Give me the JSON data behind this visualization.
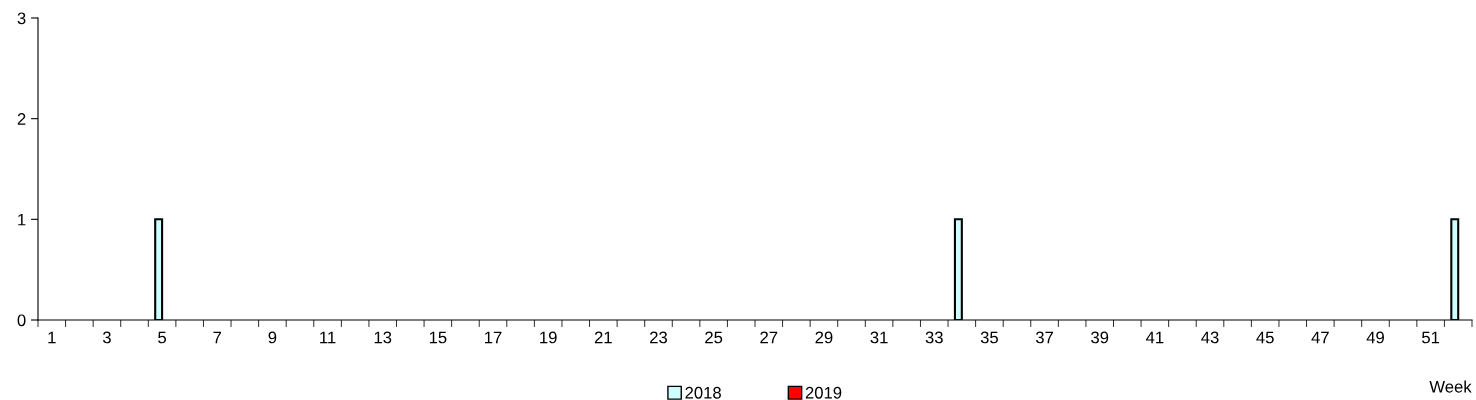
{
  "chart_data": {
    "type": "bar",
    "xlabel": "Week",
    "categories": [
      "1",
      null,
      "3",
      null,
      "5",
      null,
      "7",
      null,
      "9",
      null,
      "11",
      null,
      "13",
      null,
      "15",
      null,
      "17",
      null,
      "19",
      null,
      "21",
      null,
      "23",
      null,
      "25",
      null,
      "27",
      null,
      "29",
      null,
      "31",
      null,
      "33",
      null,
      "35",
      null,
      "37",
      null,
      "39",
      null,
      "41",
      null,
      "43",
      null,
      "45",
      null,
      "47",
      null,
      "49",
      null,
      "51",
      null
    ],
    "series": [
      {
        "name": "2018",
        "color": "#ccffff",
        "values": [
          0,
          0,
          0,
          0,
          1,
          0,
          0,
          0,
          0,
          0,
          0,
          0,
          0,
          0,
          0,
          0,
          0,
          0,
          0,
          0,
          0,
          0,
          0,
          0,
          0,
          0,
          0,
          0,
          0,
          0,
          0,
          0,
          0,
          1,
          0,
          0,
          0,
          0,
          0,
          0,
          0,
          0,
          0,
          0,
          0,
          0,
          0,
          0,
          0,
          0,
          0,
          1
        ]
      },
      {
        "name": "2019",
        "color": "#ff0000",
        "values": [
          0,
          0,
          0,
          0,
          0,
          0,
          0,
          0,
          0,
          0,
          0,
          0,
          0,
          0,
          0,
          0,
          0,
          0,
          0,
          0,
          0,
          0,
          0,
          0,
          0,
          0,
          0,
          0,
          0,
          0,
          0,
          0,
          0,
          0,
          0,
          0,
          0,
          0,
          0,
          0,
          0,
          0,
          0,
          0,
          0,
          0,
          0,
          0,
          0,
          0,
          0,
          0
        ]
      }
    ],
    "ylim": [
      0,
      3
    ],
    "yticks": [
      0,
      1,
      2,
      3
    ],
    "grid": false,
    "legend": "bottom"
  }
}
